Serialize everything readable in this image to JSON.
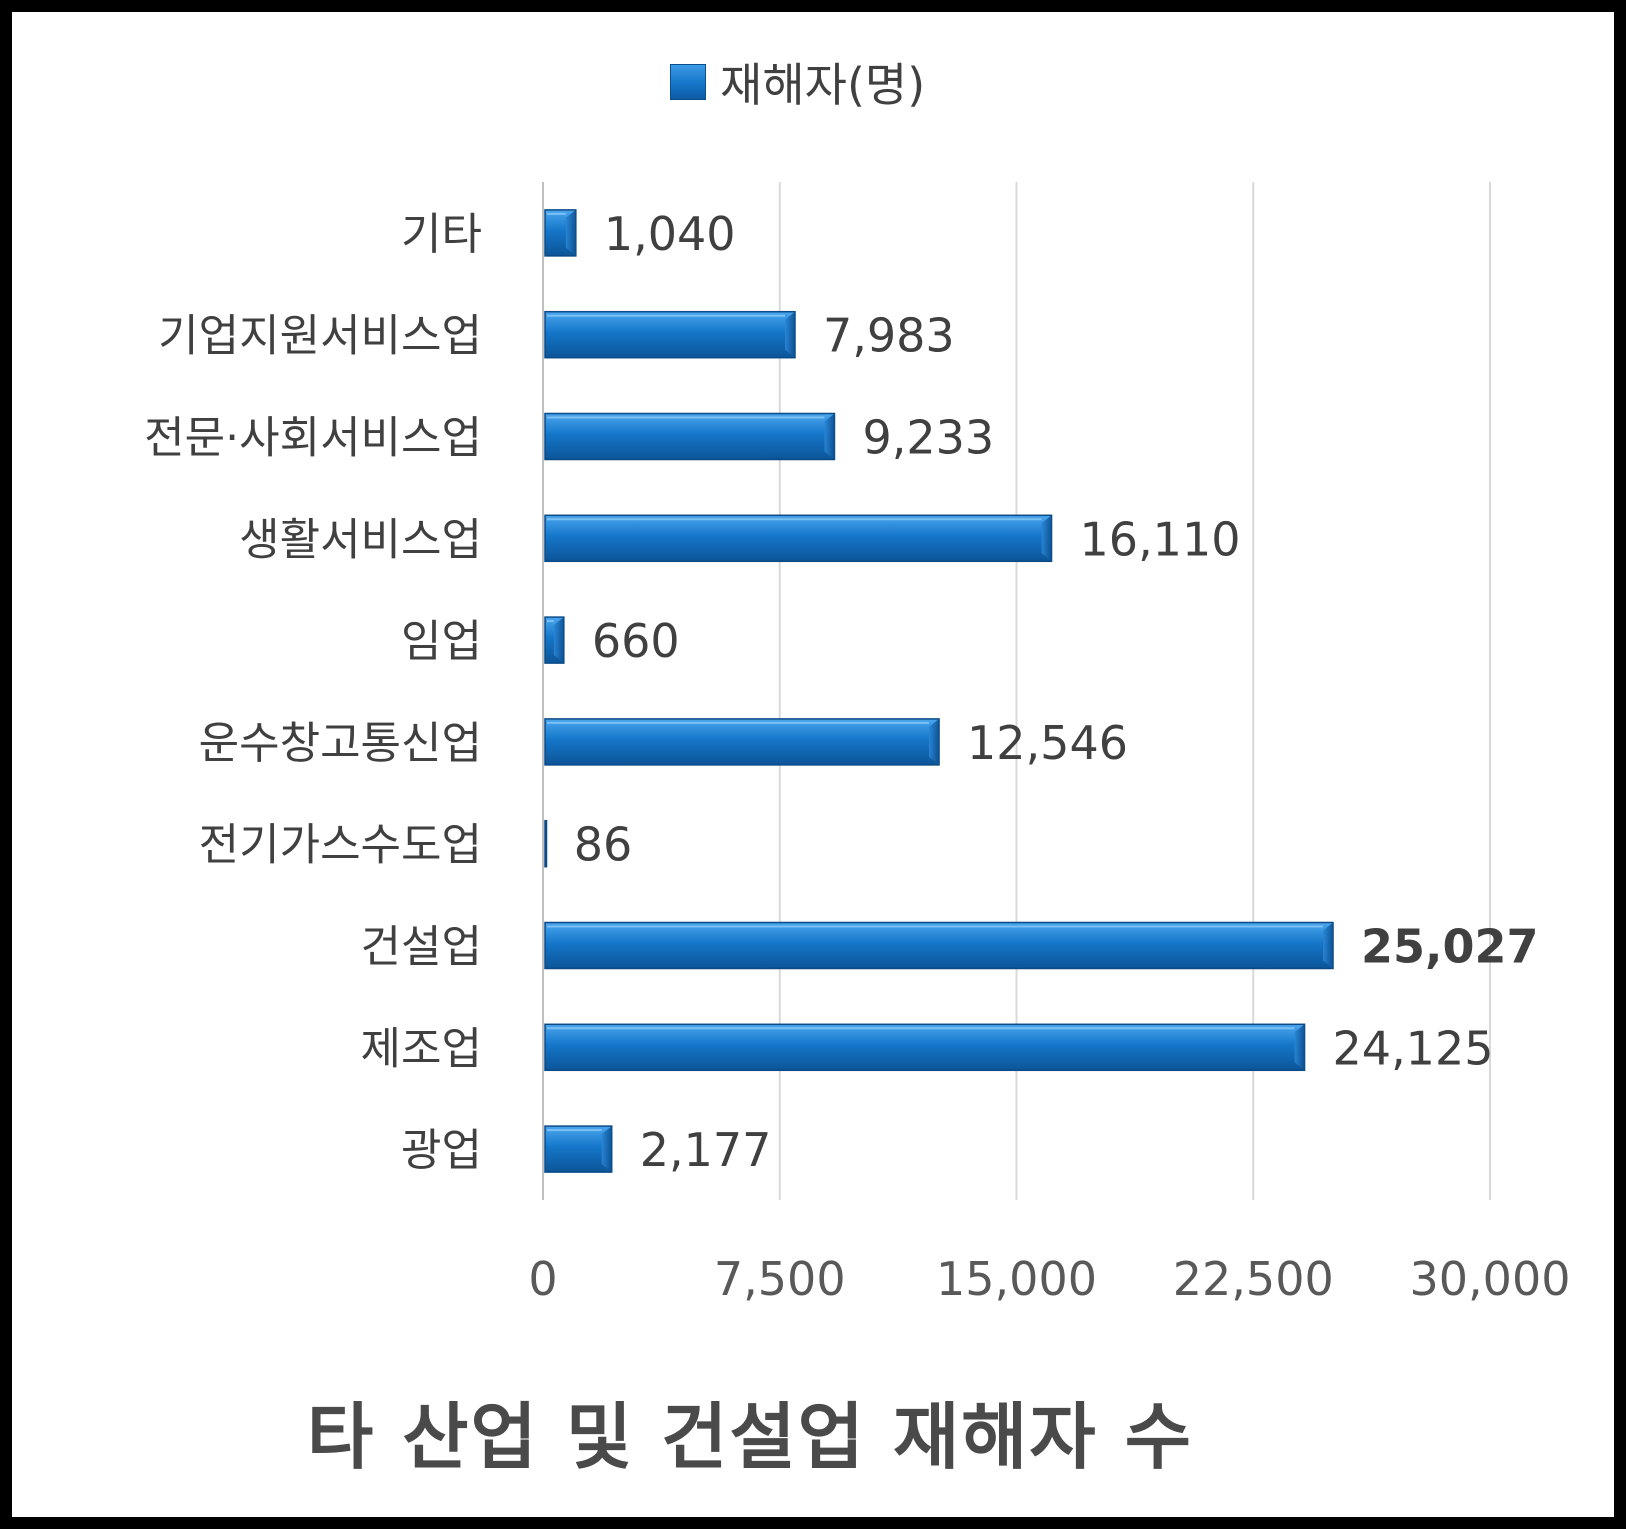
{
  "chart_data": {
    "type": "bar",
    "orientation": "horizontal",
    "title": "타 산업 및 건설업 재해자 수",
    "legend": {
      "position": "top",
      "entries": [
        "재해자(명)"
      ]
    },
    "categories": [
      "광업",
      "제조업",
      "건설업",
      "전기가스수도업",
      "운수창고통신업",
      "임업",
      "생활서비스업",
      "전문·사회서비스업",
      "기업지원서비스업",
      "기타"
    ],
    "series": [
      {
        "name": "재해자(명)",
        "values": [
          2177,
          24125,
          25027,
          86,
          12546,
          660,
          16110,
          9233,
          7983,
          1040
        ]
      }
    ],
    "value_labels": [
      "2,177",
      "24,125",
      "25,027",
      "86",
      "12,546",
      "660",
      "16,110",
      "9,233",
      "7,983",
      "1,040"
    ],
    "highlight": {
      "category": "건설업",
      "color": "#ff0000"
    },
    "xlim": [
      0,
      30000
    ],
    "x_ticks": [
      0,
      7500,
      15000,
      22500,
      30000
    ],
    "x_tick_labels": [
      "0",
      "7,500",
      "15,000",
      "22,500",
      "30,000"
    ],
    "grid": true,
    "bar_color": "#1576c9"
  }
}
